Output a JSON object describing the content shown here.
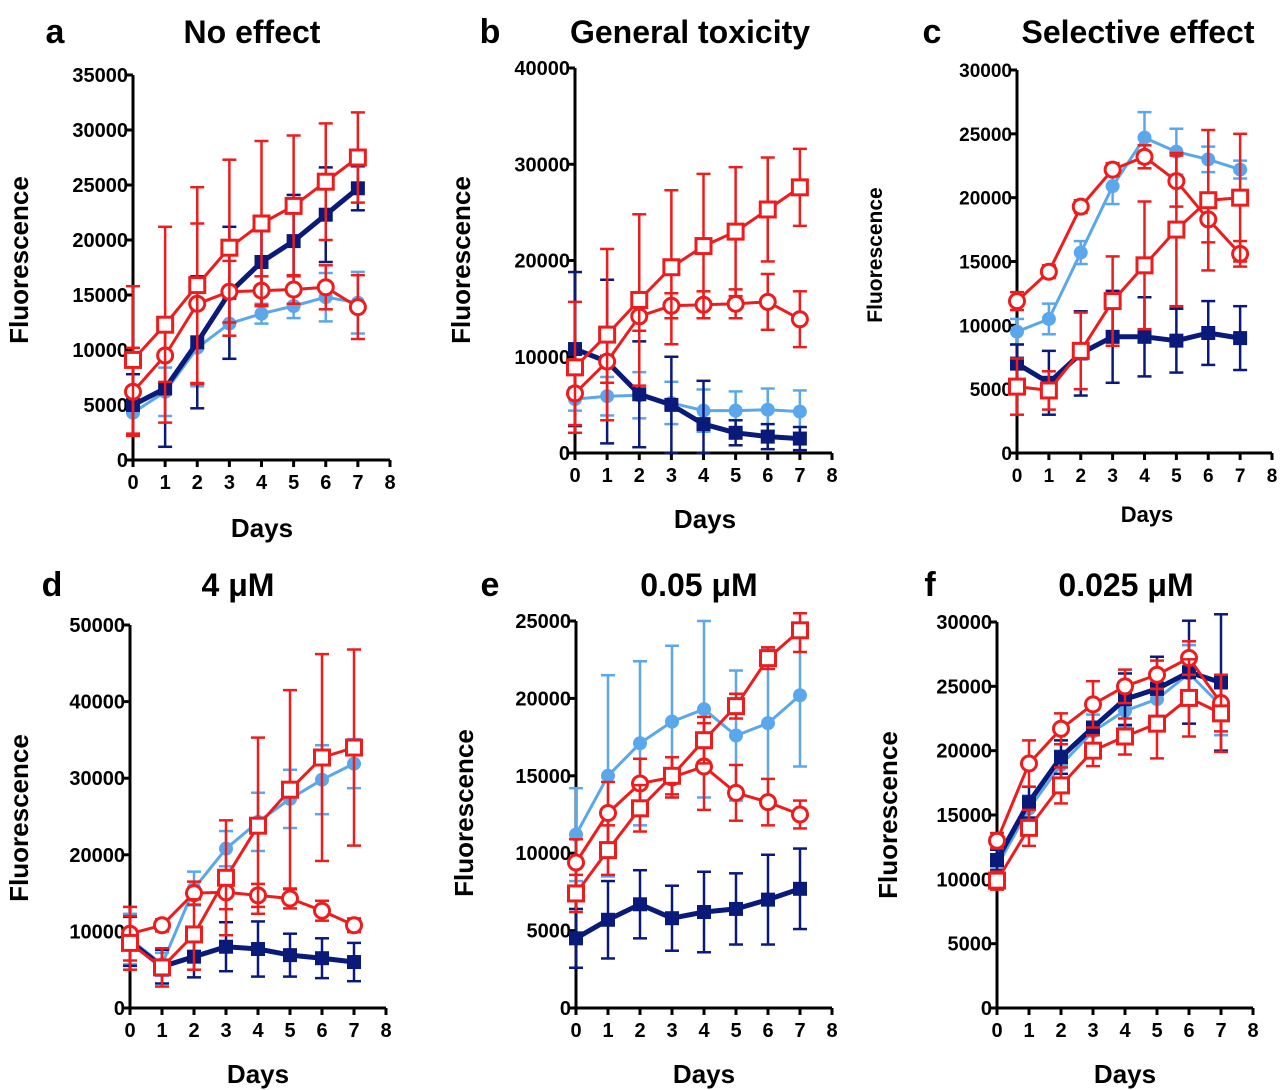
{
  "colors": {
    "navy": "#0a1a7a",
    "lightblue": "#5aa7ec",
    "red": "#ee1c1c"
  },
  "chart_data": [
    {
      "panel": "a",
      "title": "No effect",
      "type": "line",
      "xlabel": "Days",
      "ylabel": "Fluorescence",
      "x": [
        0,
        1,
        2,
        3,
        4,
        5,
        6,
        7
      ],
      "xlim": [
        0,
        8
      ],
      "xticks": [
        "0",
        "1",
        "2",
        "3",
        "4",
        "5",
        "6",
        "7",
        "8"
      ],
      "ylim": [
        0,
        35000
      ],
      "yticks": [
        "0",
        "5000",
        "10000",
        "15000",
        "20000",
        "25000",
        "30000",
        "35000"
      ],
      "series": [
        {
          "color": "#5aa7ec",
          "marker": "circle-filled",
          "values": [
            4300,
            6200,
            10200,
            12400,
            13300,
            14000,
            14800,
            14300
          ],
          "err": [
            2000,
            2200,
            3500,
            3200,
            900,
            1100,
            2200,
            2800
          ]
        },
        {
          "color": "#0a1a7a",
          "marker": "square-filled",
          "values": [
            5000,
            6500,
            10700,
            15200,
            18000,
            19900,
            22300,
            24700
          ],
          "err": [
            2800,
            5300,
            6000,
            6000,
            4000,
            4200,
            4300,
            2000
          ]
        },
        {
          "color": "#ee1c1c",
          "marker": "circle-open",
          "values": [
            6200,
            9500,
            14200,
            15300,
            15400,
            15500,
            15700,
            13900
          ],
          "err": [
            4000,
            2400,
            7300,
            2800,
            1300,
            1300,
            2000,
            2900
          ]
        },
        {
          "color": "#ee1c1c",
          "marker": "square-open",
          "values": [
            9100,
            12300,
            15900,
            19300,
            21500,
            23100,
            25300,
            27500
          ],
          "err": [
            6700,
            8900,
            8900,
            8000,
            7500,
            6400,
            5300,
            4100
          ]
        }
      ]
    },
    {
      "panel": "b",
      "title": "General toxicity",
      "type": "line",
      "xlabel": "Days",
      "ylabel": "Fluorescence",
      "x": [
        0,
        1,
        2,
        3,
        4,
        5,
        6,
        7
      ],
      "xlim": [
        0,
        8
      ],
      "xticks": [
        "0",
        "1",
        "2",
        "3",
        "4",
        "5",
        "6",
        "7",
        "8"
      ],
      "ylim": [
        0,
        40000
      ],
      "yticks": [
        "0",
        "10000",
        "20000",
        "30000",
        "40000"
      ],
      "series": [
        {
          "color": "#5aa7ec",
          "marker": "circle-filled",
          "values": [
            5600,
            5900,
            6000,
            5200,
            4400,
            4400,
            4500,
            4300
          ],
          "err": [
            1200,
            2000,
            2400,
            2200,
            2200,
            2000,
            2200,
            2200
          ]
        },
        {
          "color": "#0a1a7a",
          "marker": "square-filled",
          "values": [
            10800,
            9500,
            6100,
            5000,
            3000,
            2100,
            1700,
            1500
          ],
          "err": [
            8000,
            8500,
            5500,
            5000,
            4500,
            1300,
            1300,
            1200
          ]
        },
        {
          "color": "#ee1c1c",
          "marker": "circle-open",
          "values": [
            6200,
            9500,
            14200,
            15300,
            15400,
            15500,
            15700,
            13900
          ],
          "err": [
            3300,
            2200,
            1500,
            1300,
            1400,
            1500,
            2900,
            2900
          ]
        },
        {
          "color": "#ee1c1c",
          "marker": "square-open",
          "values": [
            8900,
            12300,
            15900,
            19300,
            21500,
            23000,
            25300,
            27600
          ],
          "err": [
            6800,
            8900,
            8900,
            8000,
            7500,
            6700,
            5400,
            4000
          ]
        }
      ]
    },
    {
      "panel": "c",
      "title": "Selective effect",
      "type": "line",
      "xlabel": "Days",
      "ylabel": "Fluorescence",
      "x": [
        0,
        1,
        2,
        3,
        4,
        5,
        6,
        7
      ],
      "xlim": [
        0,
        8
      ],
      "xticks": [
        "0",
        "1",
        "2",
        "3",
        "4",
        "5",
        "6",
        "7",
        "8"
      ],
      "ylim": [
        0,
        30000
      ],
      "yticks": [
        "0",
        "5000",
        "10000",
        "15000",
        "20000",
        "25000",
        "30000"
      ],
      "series": [
        {
          "color": "#5aa7ec",
          "marker": "circle-filled",
          "values": [
            9500,
            10500,
            15700,
            20900,
            24700,
            23600,
            23000,
            22200
          ],
          "err": [
            1000,
            1200,
            900,
            1400,
            2000,
            1800,
            1000,
            700
          ]
        },
        {
          "color": "#0a1a7a",
          "marker": "square-filled",
          "values": [
            7000,
            5500,
            7800,
            9100,
            9100,
            8800,
            9400,
            9000
          ],
          "err": [
            1500,
            2500,
            3300,
            3600,
            3100,
            2500,
            2500,
            2500
          ]
        },
        {
          "color": "#ee1c1c",
          "marker": "circle-open",
          "values": [
            11900,
            14200,
            19300,
            22200,
            23200,
            21300,
            18300,
            15600
          ],
          "err": [
            700,
            500,
            500,
            500,
            900,
            2000,
            1800,
            1000
          ]
        },
        {
          "color": "#ee1c1c",
          "marker": "square-open",
          "values": [
            5200,
            4900,
            8000,
            11900,
            14700,
            17500,
            19800,
            20000
          ],
          "err": [
            2200,
            1500,
            3000,
            3500,
            5000,
            6000,
            5500,
            5000
          ]
        }
      ]
    },
    {
      "panel": "d",
      "title": "4 μM",
      "type": "line",
      "xlabel": "Days",
      "ylabel": "Fluorescence",
      "x": [
        0,
        1,
        2,
        3,
        4,
        5,
        6,
        7
      ],
      "xlim": [
        0,
        8
      ],
      "xticks": [
        "0",
        "1",
        "2",
        "3",
        "4",
        "5",
        "6",
        "7",
        "8"
      ],
      "ylim": [
        0,
        50000
      ],
      "yticks": [
        "0",
        "10000",
        "20000",
        "30000",
        "40000",
        "50000"
      ],
      "series": [
        {
          "color": "#5aa7ec",
          "marker": "circle-filled",
          "values": [
            9000,
            5700,
            15600,
            20800,
            24300,
            27300,
            29800,
            31900
          ],
          "err": [
            3300,
            1500,
            2200,
            2300,
            3800,
            3800,
            4500,
            3200
          ]
        },
        {
          "color": "#0a1a7a",
          "marker": "square-filled",
          "values": [
            8700,
            5400,
            6700,
            8000,
            7700,
            6900,
            6500,
            6000
          ],
          "err": [
            3200,
            2200,
            2700,
            3200,
            3600,
            2800,
            2600,
            2500
          ]
        },
        {
          "color": "#ee1c1c",
          "marker": "circle-open",
          "values": [
            9700,
            10800,
            15000,
            15100,
            14700,
            14300,
            12700,
            10800
          ],
          "err": [
            3500,
            800,
            1500,
            2200,
            1500,
            1300,
            1300,
            900
          ]
        },
        {
          "color": "#ee1c1c",
          "marker": "square-open",
          "values": [
            8500,
            5300,
            9600,
            17000,
            23800,
            28500,
            32700,
            34000
          ],
          "err": [
            3500,
            2500,
            4600,
            7500,
            11500,
            13000,
            13500,
            12800
          ]
        }
      ]
    },
    {
      "panel": "e",
      "title": "0.05 μM",
      "type": "line",
      "xlabel": "Days",
      "ylabel": "Fluorescence",
      "x": [
        0,
        1,
        2,
        3,
        4,
        5,
        6,
        7
      ],
      "xlim": [
        0,
        8
      ],
      "xticks": [
        "0",
        "1",
        "2",
        "3",
        "4",
        "5",
        "6",
        "7",
        "8"
      ],
      "ylim": [
        0,
        25000
      ],
      "yticks": [
        "0",
        "5000",
        "10000",
        "15000",
        "20000",
        "25000"
      ],
      "series": [
        {
          "color": "#5aa7ec",
          "marker": "circle-filled",
          "values": [
            11200,
            15000,
            17100,
            18500,
            19300,
            17600,
            18400,
            20200
          ],
          "err": [
            3000,
            6500,
            5300,
            4900,
            5700,
            4200,
            4800,
            4600
          ]
        },
        {
          "color": "#0a1a7a",
          "marker": "square-filled",
          "values": [
            4500,
            5700,
            6700,
            5800,
            6200,
            6400,
            7000,
            7700
          ],
          "err": [
            1900,
            2500,
            2200,
            2100,
            2600,
            2300,
            2900,
            2600
          ]
        },
        {
          "color": "#ee1c1c",
          "marker": "circle-open",
          "values": [
            9400,
            12600,
            14500,
            14900,
            15600,
            13900,
            13300,
            12500
          ],
          "err": [
            1500,
            2000,
            1600,
            1300,
            2800,
            1800,
            1500,
            900
          ]
        },
        {
          "color": "#ee1c1c",
          "marker": "square-open",
          "values": [
            7400,
            10200,
            12900,
            15000,
            17300,
            19500,
            22600,
            24400
          ],
          "err": [
            1200,
            1600,
            1500,
            1200,
            1500,
            800,
            700,
            1400
          ]
        }
      ]
    },
    {
      "panel": "f",
      "title": "0.025 μM",
      "type": "line",
      "xlabel": "Days",
      "ylabel": "Fluorescence",
      "x": [
        0,
        1,
        2,
        3,
        4,
        5,
        6,
        7
      ],
      "xlim": [
        0,
        8
      ],
      "xticks": [
        "0",
        "1",
        "2",
        "3",
        "4",
        "5",
        "6",
        "7",
        "8"
      ],
      "ylim": [
        0,
        30000
      ],
      "yticks": [
        "0",
        "5000",
        "10000",
        "15000",
        "20000",
        "25000",
        "30000"
      ],
      "series": [
        {
          "color": "#5aa7ec",
          "marker": "circle-filled",
          "values": [
            11000,
            15500,
            18900,
            21500,
            23100,
            24000,
            26000,
            23500
          ],
          "err": [
            700,
            1000,
            1100,
            1300,
            1200,
            1300,
            2200,
            2300
          ]
        },
        {
          "color": "#0a1a7a",
          "marker": "square-filled",
          "values": [
            11500,
            16000,
            19500,
            21800,
            24000,
            24800,
            26100,
            25300
          ],
          "err": [
            800,
            1200,
            1300,
            1700,
            2000,
            2500,
            4000,
            5300
          ]
        },
        {
          "color": "#ee1c1c",
          "marker": "circle-open",
          "values": [
            13000,
            19000,
            21700,
            23600,
            25000,
            25900,
            27200,
            23700
          ],
          "err": [
            600,
            1800,
            1200,
            1800,
            1300,
            1100,
            1300,
            2200
          ]
        },
        {
          "color": "#ee1c1c",
          "marker": "square-open",
          "values": [
            9900,
            14000,
            17300,
            20000,
            21100,
            22100,
            24100,
            22900
          ],
          "err": [
            700,
            1400,
            1400,
            1200,
            1400,
            2700,
            3000,
            3000
          ]
        }
      ]
    }
  ]
}
